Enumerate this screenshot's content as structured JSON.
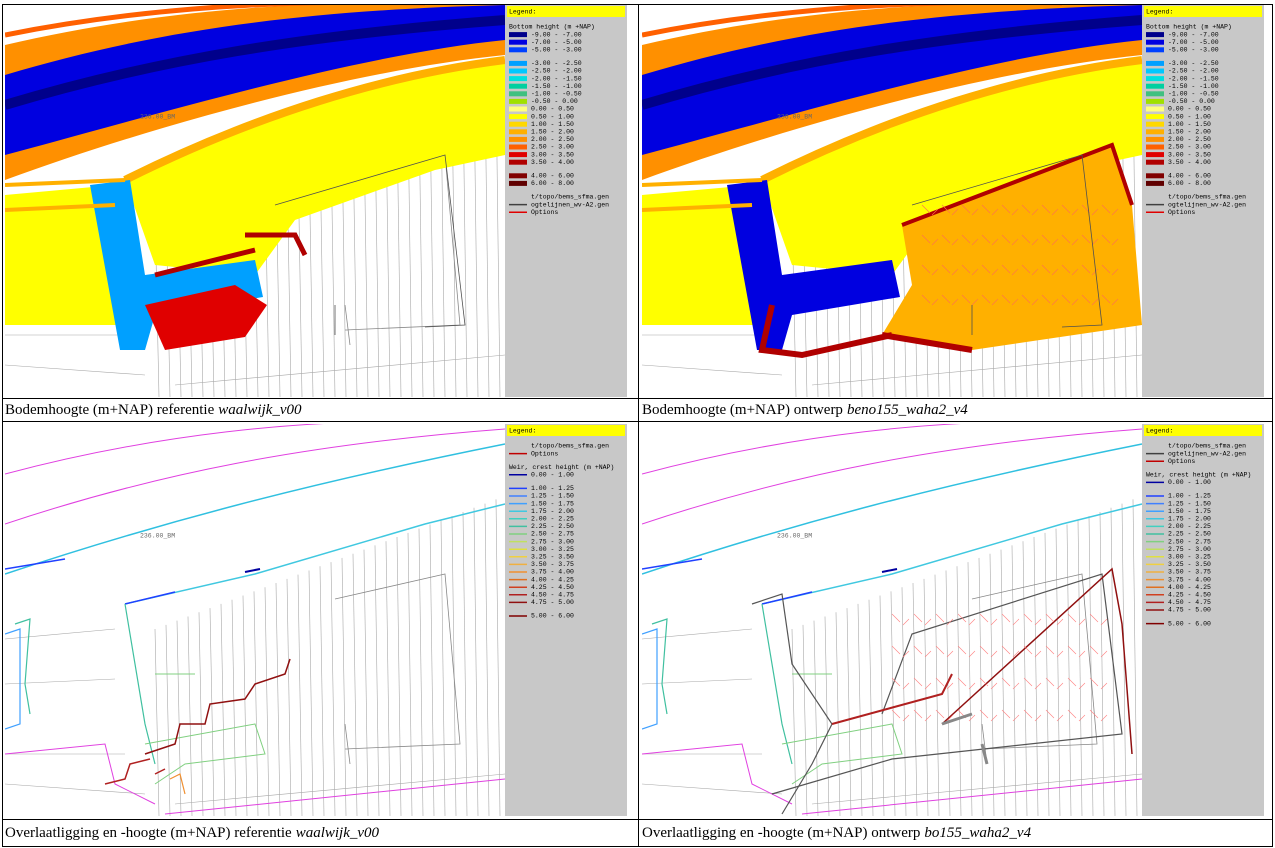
{
  "panels": [
    {
      "map_label": "236.00_BM",
      "legend": {
        "header": "Legend:",
        "sections": [
          {
            "title": "Bottom height (m +NAP)",
            "style": "box",
            "items": [
              {
                "label": "-9.00 - -7.00",
                "color": "#00008b"
              },
              {
                "label": "-7.00 - -5.00",
                "color": "#0000e0"
              },
              {
                "label": "-5.00 - -3.00",
                "color": "#0040ff"
              }
            ]
          },
          {
            "style": "box",
            "items": [
              {
                "label": "-3.00 - -2.50",
                "color": "#00a0ff"
              },
              {
                "label": "-2.50 - -2.00",
                "color": "#00c8ff"
              },
              {
                "label": "-2.00 - -1.50",
                "color": "#00e0e0"
              },
              {
                "label": "-1.50 - -1.00",
                "color": "#00d0a0"
              },
              {
                "label": "-1.00 - -0.50",
                "color": "#40c080"
              },
              {
                "label": "-0.50 - 0.00",
                "color": "#a0e000"
              },
              {
                "label": "0.00 - 0.50",
                "color": "#ffff80"
              },
              {
                "label": "0.50 - 1.00",
                "color": "#ffff00"
              },
              {
                "label": "1.00 - 1.50",
                "color": "#ffd800"
              },
              {
                "label": "1.50 - 2.00",
                "color": "#ffb000"
              },
              {
                "label": "2.00 - 2.50",
                "color": "#ff9000"
              },
              {
                "label": "2.50 - 3.00",
                "color": "#ff6000"
              },
              {
                "label": "3.00 - 3.50",
                "color": "#e00000"
              },
              {
                "label": "3.50 - 4.00",
                "color": "#b00000"
              }
            ]
          },
          {
            "style": "box",
            "items": [
              {
                "label": "4.00 - 6.00",
                "color": "#800000"
              },
              {
                "label": "6.00 - 8.00",
                "color": "#600000"
              }
            ]
          },
          {
            "style": "line",
            "items": [
              {
                "label": "t/topo/bems_sfma.gen"
              },
              {
                "label": "ogtelijnen_wv-A2.gen",
                "color": "#404040"
              },
              {
                "label": "Options",
                "color": "#e00000"
              }
            ]
          }
        ]
      },
      "caption": {
        "text": "Bodemhoogte (m+NAP) referentie",
        "italic": "waalwijk_v00"
      }
    },
    {
      "map_label": "236.00_BM",
      "legend": {
        "header": "Legend:",
        "sections": [
          {
            "title": "Bottom height (m +NAP)",
            "style": "box",
            "items": [
              {
                "label": "-9.00 - -7.00",
                "color": "#00008b"
              },
              {
                "label": "-7.00 - -5.00",
                "color": "#0000e0"
              },
              {
                "label": "-5.00 - -3.00",
                "color": "#0040ff"
              }
            ]
          },
          {
            "style": "box",
            "items": [
              {
                "label": "-3.00 - -2.50",
                "color": "#00a0ff"
              },
              {
                "label": "-2.50 - -2.00",
                "color": "#00c8ff"
              },
              {
                "label": "-2.00 - -1.50",
                "color": "#00e0e0"
              },
              {
                "label": "-1.50 - -1.00",
                "color": "#00d0a0"
              },
              {
                "label": "-1.00 - -0.50",
                "color": "#40c080"
              },
              {
                "label": "-0.50 - 0.00",
                "color": "#a0e000"
              },
              {
                "label": "0.00 - 0.50",
                "color": "#ffff80"
              },
              {
                "label": "0.50 - 1.00",
                "color": "#ffff00"
              },
              {
                "label": "1.00 - 1.50",
                "color": "#ffd800"
              },
              {
                "label": "1.50 - 2.00",
                "color": "#ffb000"
              },
              {
                "label": "2.00 - 2.50",
                "color": "#ff9000"
              },
              {
                "label": "2.50 - 3.00",
                "color": "#ff6000"
              },
              {
                "label": "3.00 - 3.50",
                "color": "#e00000"
              },
              {
                "label": "3.50 - 4.00",
                "color": "#b00000"
              }
            ]
          },
          {
            "style": "box",
            "items": [
              {
                "label": "4.00 - 6.00",
                "color": "#800000"
              },
              {
                "label": "6.00 - 8.00",
                "color": "#600000"
              }
            ]
          },
          {
            "style": "line",
            "items": [
              {
                "label": "t/topo/bems_sfma.gen"
              },
              {
                "label": "ogtelijnen_wv-A2.gen",
                "color": "#404040"
              },
              {
                "label": "Options",
                "color": "#e00000"
              }
            ]
          }
        ]
      },
      "caption": {
        "text": "Bodemhoogte (m+NAP) ontwerp",
        "italic": "beno155_waha2_v4"
      }
    },
    {
      "map_label": "236.00_BM",
      "legend": {
        "header": "Legend:",
        "sections": [
          {
            "style": "line",
            "items": [
              {
                "label": "t/topo/bems_sfma.gen"
              },
              {
                "label": "Options",
                "color": "#c00000"
              }
            ]
          },
          {
            "title": "Weir, crest height (m +NAP)",
            "style": "line",
            "items": [
              {
                "label": "0.00 - 1.00",
                "color": "#0000a0"
              }
            ]
          },
          {
            "style": "line",
            "items": [
              {
                "label": "1.00 - 1.25",
                "color": "#2040ff"
              },
              {
                "label": "1.25 - 1.50",
                "color": "#4080ff"
              },
              {
                "label": "1.50 - 1.75",
                "color": "#40a0ff"
              },
              {
                "label": "1.75 - 2.00",
                "color": "#40c8e0"
              },
              {
                "label": "2.00 - 2.25",
                "color": "#40d0c0"
              },
              {
                "label": "2.25 - 2.50",
                "color": "#40c0a0"
              },
              {
                "label": "2.50 - 2.75",
                "color": "#80d080"
              },
              {
                "label": "2.75 - 3.00",
                "color": "#c0e060"
              },
              {
                "label": "3.00 - 3.25",
                "color": "#e0e040"
              },
              {
                "label": "3.25 - 3.50",
                "color": "#f0d040"
              },
              {
                "label": "3.50 - 3.75",
                "color": "#f0b040"
              },
              {
                "label": "3.75 - 4.00",
                "color": "#f09030"
              },
              {
                "label": "4.00 - 4.25",
                "color": "#e07020"
              },
              {
                "label": "4.25 - 4.50",
                "color": "#d04020"
              },
              {
                "label": "4.50 - 4.75",
                "color": "#b02020"
              },
              {
                "label": "4.75 - 5.00",
                "color": "#901010"
              }
            ]
          },
          {
            "style": "line",
            "items": [
              {
                "label": "5.00 - 6.00",
                "color": "#800000"
              }
            ]
          }
        ]
      },
      "caption": {
        "text": "Overlaatligging en -hoogte (m+NAP) referentie",
        "italic": "waalwijk_v00"
      }
    },
    {
      "map_label": "236.00_BM",
      "legend": {
        "header": "Legend:",
        "sections": [
          {
            "style": "line",
            "items": [
              {
                "label": "t/topo/bems_sfma.gen"
              },
              {
                "label": "ogtelijnen_wv-A2.gen",
                "color": "#404040"
              },
              {
                "label": "Options",
                "color": "#c00000"
              }
            ]
          },
          {
            "title": "Weir, crest height (m +NAP)",
            "style": "line",
            "items": [
              {
                "label": "0.00 - 1.00",
                "color": "#0000a0"
              }
            ]
          },
          {
            "style": "line",
            "items": [
              {
                "label": "1.00 - 1.25",
                "color": "#2040ff"
              },
              {
                "label": "1.25 - 1.50",
                "color": "#4080ff"
              },
              {
                "label": "1.50 - 1.75",
                "color": "#40a0ff"
              },
              {
                "label": "1.75 - 2.00",
                "color": "#40c8e0"
              },
              {
                "label": "2.00 - 2.25",
                "color": "#40d0c0"
              },
              {
                "label": "2.25 - 2.50",
                "color": "#40c0a0"
              },
              {
                "label": "2.50 - 2.75",
                "color": "#80d080"
              },
              {
                "label": "2.75 - 3.00",
                "color": "#c0e060"
              },
              {
                "label": "3.00 - 3.25",
                "color": "#e0e040"
              },
              {
                "label": "3.25 - 3.50",
                "color": "#f0d040"
              },
              {
                "label": "3.50 - 3.75",
                "color": "#f0b040"
              },
              {
                "label": "3.75 - 4.00",
                "color": "#f09030"
              },
              {
                "label": "4.00 - 4.25",
                "color": "#e07020"
              },
              {
                "label": "4.25 - 4.50",
                "color": "#d04020"
              },
              {
                "label": "4.50 - 4.75",
                "color": "#b02020"
              },
              {
                "label": "4.75 - 5.00",
                "color": "#901010"
              }
            ]
          },
          {
            "style": "line",
            "items": [
              {
                "label": "5.00 - 6.00",
                "color": "#800000"
              }
            ]
          }
        ]
      },
      "caption": {
        "text": "Overlaatligging en -hoogte (m+NAP) ontwerp",
        "italic": "bo155_waha2_v4"
      }
    }
  ]
}
